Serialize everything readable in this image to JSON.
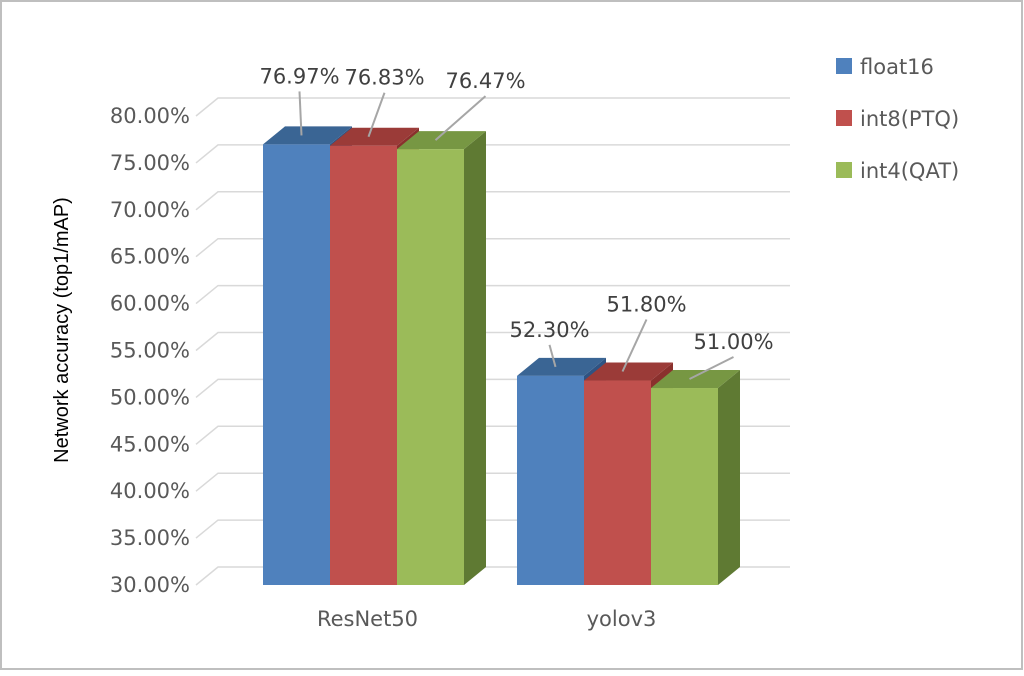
{
  "chart_data": {
    "type": "bar",
    "categories": [
      "ResNet50",
      "yolov3"
    ],
    "series": [
      {
        "name": "float16",
        "values": [
          76.97,
          52.3
        ],
        "labels": [
          "76.97%",
          "52.30%"
        ],
        "color": "#4F81BD",
        "top_color": "#3A6594",
        "side_color": "#2F5382"
      },
      {
        "name": "int8(PTQ)",
        "values": [
          76.83,
          51.8
        ],
        "labels": [
          "76.83%",
          "51.80%"
        ],
        "color": "#C0504D",
        "top_color": "#9B3B38",
        "side_color": "#8A302D"
      },
      {
        "name": "int4(QAT)",
        "values": [
          76.47,
          51.0
        ],
        "labels": [
          "76.47%",
          "51.00%"
        ],
        "color": "#9BBB59",
        "top_color": "#779743",
        "side_color": "#5F7A33"
      }
    ],
    "title": "",
    "xlabel": "",
    "ylabel": "Network accuracy (top1/mAP)",
    "ylim": [
      30,
      80
    ],
    "yticks": [
      "30.00%",
      "35.00%",
      "40.00%",
      "45.00%",
      "50.00%",
      "55.00%",
      "60.00%",
      "65.00%",
      "70.00%",
      "75.00%",
      "80.00%"
    ],
    "grid": true,
    "legend_position": "top-right",
    "gridline_color": "#D9D9D9",
    "frame_color": "#BFBFBF"
  }
}
